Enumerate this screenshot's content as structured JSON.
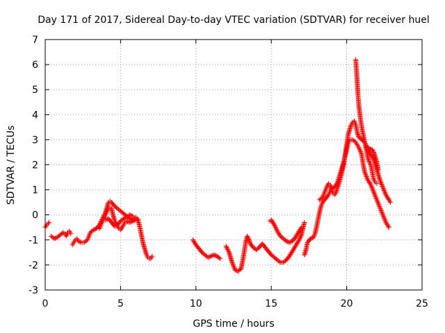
{
  "chart_data": {
    "type": "scatter",
    "title": "Day 171 of 2017, Sidereal Day-to-day VTEC variation (SDTVAR) for receiver huel",
    "xlabel": "GPS time / hours",
    "ylabel": "SDTVAR / TECUs",
    "xlim": [
      0,
      25
    ],
    "ylim": [
      -3,
      7
    ],
    "xticks": [
      0,
      5,
      10,
      15,
      20,
      25
    ],
    "yticks": [
      -3,
      -2,
      -1,
      0,
      1,
      2,
      3,
      4,
      5,
      6,
      7
    ],
    "grid": true,
    "marker": "+",
    "color": "#ff0000",
    "segments": [
      [
        [
          0.0,
          -0.5
        ],
        [
          0.1,
          -0.4
        ],
        [
          0.2,
          -0.35
        ],
        [
          0.25,
          -0.3
        ]
      ],
      [
        [
          0.4,
          -0.85
        ],
        [
          0.6,
          -0.95
        ],
        [
          0.8,
          -0.9
        ],
        [
          1.0,
          -0.8
        ],
        [
          1.2,
          -0.7
        ],
        [
          1.3,
          -0.75
        ],
        [
          1.4,
          -0.85
        ],
        [
          1.5,
          -0.7
        ],
        [
          1.6,
          -0.65
        ],
        [
          1.7,
          -0.75
        ]
      ],
      [
        [
          1.8,
          -1.2
        ],
        [
          1.9,
          -1.1
        ],
        [
          2.0,
          -1.0
        ],
        [
          2.1,
          -0.95
        ],
        [
          2.2,
          -1.05
        ],
        [
          2.4,
          -1.1
        ],
        [
          2.6,
          -1.1
        ],
        [
          2.8,
          -1.0
        ],
        [
          2.9,
          -0.85
        ],
        [
          3.0,
          -0.7
        ],
        [
          3.2,
          -0.6
        ],
        [
          3.4,
          -0.55
        ],
        [
          3.6,
          -0.4
        ],
        [
          3.8,
          -0.15
        ],
        [
          4.0,
          0.1
        ],
        [
          4.1,
          0.3
        ],
        [
          4.2,
          0.5
        ],
        [
          4.3,
          0.55
        ],
        [
          4.4,
          0.5
        ],
        [
          4.6,
          0.35
        ],
        [
          4.8,
          0.25
        ],
        [
          5.0,
          0.15
        ],
        [
          5.2,
          0.05
        ],
        [
          5.4,
          -0.05
        ],
        [
          5.6,
          -0.15
        ],
        [
          5.8,
          -0.2
        ],
        [
          6.0,
          -0.1
        ],
        [
          6.1,
          -0.15
        ],
        [
          6.2,
          -0.3
        ],
        [
          6.3,
          -0.55
        ],
        [
          6.4,
          -0.85
        ],
        [
          6.5,
          -1.15
        ],
        [
          6.6,
          -1.35
        ],
        [
          6.7,
          -1.55
        ],
        [
          6.8,
          -1.7
        ],
        [
          6.9,
          -1.75
        ],
        [
          7.0,
          -1.75
        ],
        [
          7.1,
          -1.65
        ]
      ],
      [
        [
          3.6,
          -0.55
        ],
        [
          3.7,
          -0.4
        ],
        [
          3.8,
          -0.25
        ],
        [
          3.9,
          -0.1
        ],
        [
          4.0,
          0.0
        ],
        [
          4.1,
          0.15
        ],
        [
          4.2,
          0.25
        ],
        [
          4.3,
          0.3
        ],
        [
          4.4,
          0.25
        ],
        [
          4.5,
          0.0
        ],
        [
          4.6,
          -0.2
        ],
        [
          4.7,
          -0.35
        ],
        [
          4.8,
          -0.45
        ],
        [
          4.9,
          -0.55
        ],
        [
          5.0,
          -0.6
        ],
        [
          5.1,
          -0.5
        ],
        [
          5.2,
          -0.4
        ],
        [
          5.3,
          -0.3
        ],
        [
          5.4,
          -0.25
        ],
        [
          5.6,
          -0.3
        ],
        [
          5.8,
          -0.25
        ],
        [
          6.0,
          -0.2
        ],
        [
          6.1,
          -0.15
        ],
        [
          6.2,
          -0.2
        ]
      ],
      [
        [
          4.0,
          -0.2
        ],
        [
          4.2,
          -0.15
        ],
        [
          4.4,
          -0.3
        ],
        [
          4.6,
          -0.45
        ],
        [
          4.8,
          -0.4
        ],
        [
          5.0,
          -0.25
        ],
        [
          5.2,
          -0.15
        ],
        [
          5.4,
          -0.1
        ],
        [
          5.6,
          0.0
        ],
        [
          5.8,
          -0.05
        ]
      ],
      [
        [
          9.8,
          -1.0
        ],
        [
          10.0,
          -1.2
        ],
        [
          10.2,
          -1.35
        ],
        [
          10.4,
          -1.5
        ],
        [
          10.6,
          -1.6
        ],
        [
          10.8,
          -1.7
        ],
        [
          11.0,
          -1.65
        ],
        [
          11.2,
          -1.6
        ],
        [
          11.4,
          -1.65
        ],
        [
          11.6,
          -1.75
        ]
      ],
      [
        [
          12.0,
          -1.25
        ],
        [
          12.2,
          -1.5
        ],
        [
          12.4,
          -1.9
        ],
        [
          12.6,
          -2.2
        ],
        [
          12.8,
          -2.25
        ],
        [
          13.0,
          -2.15
        ],
        [
          13.1,
          -1.85
        ],
        [
          13.2,
          -1.5
        ],
        [
          13.3,
          -1.1
        ],
        [
          13.4,
          -0.85
        ],
        [
          13.5,
          -0.95
        ],
        [
          13.6,
          -1.15
        ],
        [
          13.8,
          -1.3
        ],
        [
          14.0,
          -1.4
        ],
        [
          14.2,
          -1.3
        ],
        [
          14.4,
          -1.15
        ],
        [
          14.6,
          -1.3
        ],
        [
          14.8,
          -1.45
        ],
        [
          15.0,
          -1.6
        ],
        [
          15.2,
          -1.7
        ],
        [
          15.4,
          -1.8
        ],
        [
          15.6,
          -1.9
        ],
        [
          15.8,
          -1.9
        ],
        [
          16.0,
          -1.8
        ],
        [
          16.2,
          -1.65
        ],
        [
          16.4,
          -1.45
        ],
        [
          16.6,
          -1.25
        ],
        [
          16.8,
          -1.05
        ],
        [
          17.0,
          -0.8
        ],
        [
          17.1,
          -0.55
        ],
        [
          17.2,
          -0.3
        ]
      ],
      [
        [
          14.9,
          -0.25
        ],
        [
          15.0,
          -0.2
        ],
        [
          15.2,
          -0.4
        ],
        [
          15.4,
          -0.65
        ],
        [
          15.6,
          -0.85
        ],
        [
          15.8,
          -0.95
        ],
        [
          16.0,
          -1.05
        ],
        [
          16.2,
          -1.1
        ],
        [
          16.4,
          -1.05
        ],
        [
          16.6,
          -0.9
        ],
        [
          16.8,
          -0.7
        ],
        [
          17.0,
          -0.5
        ]
      ],
      [
        [
          17.2,
          -1.6
        ],
        [
          17.3,
          -1.4
        ],
        [
          17.4,
          -1.1
        ],
        [
          17.6,
          -0.95
        ],
        [
          17.8,
          -0.9
        ],
        [
          17.9,
          -0.75
        ],
        [
          18.0,
          -0.5
        ],
        [
          18.1,
          -0.2
        ],
        [
          18.2,
          0.1
        ],
        [
          18.3,
          0.35
        ],
        [
          18.4,
          0.5
        ],
        [
          18.6,
          0.65
        ],
        [
          18.8,
          0.8
        ],
        [
          18.9,
          0.95
        ],
        [
          19.0,
          1.05
        ],
        [
          19.2,
          1.1
        ],
        [
          19.4,
          1.3
        ],
        [
          19.6,
          1.7
        ],
        [
          19.8,
          2.1
        ],
        [
          20.0,
          2.6
        ],
        [
          20.1,
          2.9
        ],
        [
          20.2,
          3.0
        ],
        [
          20.4,
          3.0
        ],
        [
          20.6,
          2.9
        ],
        [
          20.7,
          2.8
        ],
        [
          20.8,
          2.7
        ],
        [
          21.0,
          2.4
        ],
        [
          21.1,
          2.0
        ],
        [
          21.2,
          1.7
        ],
        [
          21.4,
          1.4
        ],
        [
          21.6,
          1.2
        ],
        [
          21.8,
          0.9
        ],
        [
          22.0,
          0.6
        ],
        [
          22.2,
          0.3
        ],
        [
          22.4,
          0.0
        ],
        [
          22.6,
          -0.3
        ],
        [
          22.8,
          -0.5
        ]
      ],
      [
        [
          18.2,
          0.6
        ],
        [
          18.4,
          0.7
        ],
        [
          18.5,
          0.85
        ],
        [
          18.6,
          1.0
        ],
        [
          18.7,
          1.15
        ],
        [
          18.8,
          1.25
        ],
        [
          18.9,
          1.2
        ],
        [
          19.0,
          1.0
        ],
        [
          19.1,
          0.85
        ],
        [
          19.2,
          0.8
        ],
        [
          19.3,
          0.9
        ],
        [
          19.4,
          1.1
        ],
        [
          19.6,
          1.5
        ],
        [
          19.8,
          2.0
        ],
        [
          19.9,
          2.4
        ],
        [
          20.0,
          2.8
        ],
        [
          20.1,
          3.2
        ],
        [
          20.2,
          3.4
        ],
        [
          20.3,
          3.6
        ],
        [
          20.4,
          3.7
        ],
        [
          20.5,
          3.75
        ],
        [
          20.6,
          3.6
        ],
        [
          20.7,
          3.3
        ],
        [
          20.8,
          3.1
        ],
        [
          21.0,
          3.0
        ],
        [
          21.2,
          2.9
        ],
        [
          21.4,
          2.6
        ],
        [
          21.6,
          2.4
        ],
        [
          21.8,
          2.2
        ],
        [
          22.0,
          1.8
        ],
        [
          22.2,
          1.4
        ],
        [
          22.4,
          1.1
        ],
        [
          22.6,
          0.8
        ],
        [
          22.8,
          0.6
        ],
        [
          22.9,
          0.5
        ]
      ],
      [
        [
          20.6,
          6.2
        ],
        [
          20.65,
          5.8
        ],
        [
          20.7,
          5.3
        ],
        [
          20.75,
          4.8
        ],
        [
          20.8,
          4.4
        ],
        [
          20.9,
          3.9
        ],
        [
          21.0,
          3.5
        ],
        [
          21.1,
          3.2
        ],
        [
          21.2,
          2.9
        ],
        [
          21.3,
          2.6
        ],
        [
          21.4,
          2.3
        ],
        [
          21.5,
          2.1
        ],
        [
          21.6,
          2.0
        ],
        [
          21.7,
          1.7
        ],
        [
          21.8,
          1.4
        ],
        [
          21.9,
          1.3
        ],
        [
          22.0,
          1.25
        ]
      ],
      [
        [
          21.3,
          2.7
        ],
        [
          21.5,
          2.65
        ],
        [
          21.7,
          2.6
        ],
        [
          21.8,
          2.5
        ],
        [
          21.9,
          2.3
        ],
        [
          22.0,
          2.1
        ],
        [
          22.1,
          1.8
        ]
      ]
    ]
  }
}
